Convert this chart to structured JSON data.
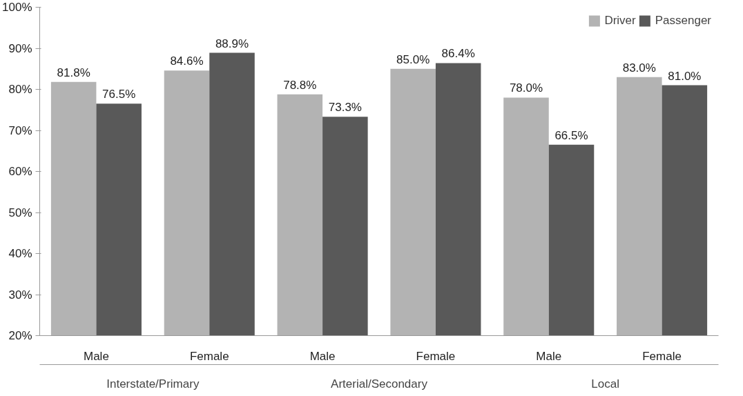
{
  "chart_data": {
    "type": "bar",
    "categories": [
      "Male",
      "Female",
      "Male",
      "Female",
      "Male",
      "Female"
    ],
    "annotations": [
      "Interstate/Primary",
      "Arterial/Secondary",
      "Local"
    ],
    "series": [
      {
        "name": "Driver",
        "color": "#b3b3b3",
        "values": [
          81.8,
          84.6,
          78.8,
          85.0,
          78.0,
          83.0
        ],
        "value_labels": [
          "81.8%",
          "84.6%",
          "78.8%",
          "85.0%",
          "78.0%",
          "83.0%"
        ]
      },
      {
        "name": "Passenger",
        "color": "#595959",
        "values": [
          76.5,
          88.9,
          73.3,
          86.4,
          66.5,
          81.0
        ],
        "value_labels": [
          "76.5%",
          "88.9%",
          "73.3%",
          "86.4%",
          "66.5%",
          "81.0%"
        ]
      }
    ],
    "ylim": [
      20,
      100
    ],
    "yticks": [
      {
        "value": 20,
        "label": "20%"
      },
      {
        "value": 30,
        "label": "30%"
      },
      {
        "value": 40,
        "label": "40%"
      },
      {
        "value": 50,
        "label": "50%"
      },
      {
        "value": 60,
        "label": "60%"
      },
      {
        "value": 70,
        "label": "70%"
      },
      {
        "value": 80,
        "label": "80%"
      },
      {
        "value": 90,
        "label": "90%"
      },
      {
        "value": 100,
        "label": "100%"
      }
    ],
    "grid": false,
    "legend": "top right"
  }
}
